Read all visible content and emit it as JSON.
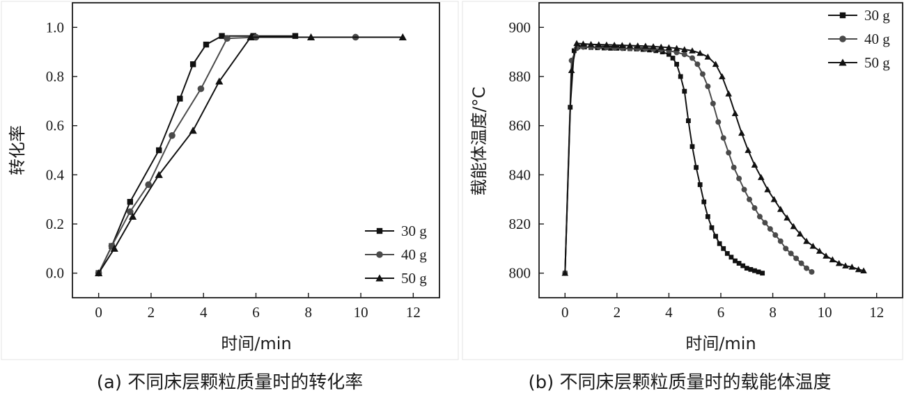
{
  "chart_data": [
    {
      "type": "line",
      "xlabel": "时间/min",
      "ylabel": "转化率",
      "caption": "(a) 不同床层颗粒质量时的转化率",
      "xlim": [
        -1,
        13
      ],
      "ylim": [
        -0.1,
        1.1
      ],
      "xticks": [
        0,
        2,
        4,
        6,
        8,
        10,
        12
      ],
      "yticks": [
        0.0,
        0.2,
        0.4,
        0.6,
        0.8,
        1.0
      ],
      "ytick_decimals": 1,
      "legend_position": "bottom-right",
      "series": [
        {
          "name": "30 g",
          "marker": "square",
          "color": "#111111",
          "x": [
            0,
            0.5,
            1.2,
            2.3,
            3.1,
            3.6,
            4.1,
            4.7,
            5.9,
            7.5
          ],
          "y": [
            0.0,
            0.11,
            0.29,
            0.5,
            0.71,
            0.85,
            0.93,
            0.965,
            0.965,
            0.965
          ]
        },
        {
          "name": "40 g",
          "marker": "circle",
          "color": "#4a4a4a",
          "x": [
            0,
            0.5,
            1.2,
            1.9,
            2.8,
            3.9,
            4.9,
            6.0,
            9.8
          ],
          "y": [
            0.0,
            0.11,
            0.25,
            0.36,
            0.56,
            0.75,
            0.955,
            0.96,
            0.96
          ]
        },
        {
          "name": "50 g",
          "marker": "triangle",
          "color": "#111111",
          "x": [
            0,
            0.6,
            1.3,
            2.3,
            3.6,
            4.6,
            5.8,
            8.1,
            11.6
          ],
          "y": [
            0.0,
            0.1,
            0.23,
            0.4,
            0.58,
            0.78,
            0.96,
            0.96,
            0.96
          ]
        }
      ]
    },
    {
      "type": "line",
      "xlabel": "时间/min",
      "ylabel": "载能体温度/°C",
      "caption": "(b) 不同床层颗粒质量时的载能体温度",
      "xlim": [
        -1,
        13
      ],
      "ylim": [
        790,
        910
      ],
      "xticks": [
        0,
        2,
        4,
        6,
        8,
        10,
        12
      ],
      "yticks": [
        800,
        820,
        840,
        860,
        880,
        900
      ],
      "ytick_decimals": 0,
      "legend_position": "top-right",
      "series": [
        {
          "name": "30 g",
          "marker": "square",
          "color": "#111111",
          "x": [
            0,
            0.2,
            0.35,
            0.5,
            0.75,
            1.0,
            1.25,
            1.5,
            1.75,
            2.0,
            2.25,
            2.5,
            2.75,
            3.0,
            3.25,
            3.5,
            3.75,
            4.0,
            4.15,
            4.3,
            4.45,
            4.6,
            4.75,
            4.9,
            5.05,
            5.2,
            5.35,
            5.5,
            5.65,
            5.8,
            5.95,
            6.1,
            6.25,
            6.4,
            6.55,
            6.7,
            6.85,
            7.0,
            7.15,
            7.3,
            7.45,
            7.6
          ],
          "y": [
            800,
            867.5,
            890.5,
            892,
            892,
            891.8,
            891.7,
            891.6,
            891.5,
            891.5,
            891.4,
            891.3,
            891.2,
            891,
            890.8,
            890.5,
            890,
            889,
            887.5,
            885,
            880,
            874,
            862,
            851.5,
            843,
            836,
            829,
            823,
            818.5,
            815,
            812,
            810,
            808,
            806.5,
            805,
            804,
            803,
            802,
            801.5,
            801,
            800.5,
            800
          ]
        },
        {
          "name": "40 g",
          "marker": "circle",
          "color": "#4a4a4a",
          "x": [
            0,
            0.25,
            0.45,
            0.7,
            1.0,
            1.3,
            1.6,
            1.9,
            2.2,
            2.5,
            2.8,
            3.1,
            3.4,
            3.7,
            4.0,
            4.3,
            4.6,
            4.9,
            5.1,
            5.3,
            5.5,
            5.7,
            5.9,
            6.1,
            6.3,
            6.5,
            6.7,
            6.9,
            7.1,
            7.3,
            7.5,
            7.7,
            7.9,
            8.1,
            8.3,
            8.5,
            8.7,
            8.9,
            9.1,
            9.3,
            9.5
          ],
          "y": [
            800,
            886.5,
            891.5,
            892,
            892,
            892,
            891.8,
            891.6,
            891.5,
            891.4,
            891.3,
            891.2,
            891.1,
            891,
            890.5,
            889.8,
            889,
            887.5,
            885,
            881,
            876,
            869,
            861.5,
            855,
            849,
            843,
            838.5,
            834,
            830,
            826.5,
            823,
            820.5,
            818,
            815.5,
            813,
            810,
            808,
            806,
            804,
            802,
            800.5
          ]
        },
        {
          "name": "50 g",
          "marker": "triangle",
          "color": "#111111",
          "x": [
            0,
            0.25,
            0.45,
            0.7,
            1.0,
            1.3,
            1.6,
            1.9,
            2.2,
            2.5,
            2.8,
            3.1,
            3.4,
            3.7,
            4.0,
            4.3,
            4.6,
            4.9,
            5.2,
            5.5,
            5.8,
            6.05,
            6.3,
            6.55,
            6.8,
            7.05,
            7.3,
            7.55,
            7.8,
            8.05,
            8.3,
            8.55,
            8.8,
            9.05,
            9.3,
            9.55,
            9.8,
            10.05,
            10.3,
            10.55,
            10.8,
            11.05,
            11.3,
            11.5
          ],
          "y": [
            800,
            882.5,
            893.5,
            893.3,
            893.1,
            893,
            892.9,
            892.8,
            892.7,
            892.6,
            892.5,
            892.4,
            892.2,
            892,
            891.8,
            891.5,
            891,
            890.5,
            889.5,
            888,
            885,
            880,
            873,
            865,
            857,
            850,
            844,
            839,
            834,
            830,
            826,
            822.5,
            819,
            816,
            813,
            811,
            809,
            807,
            805.5,
            804,
            803,
            802.5,
            801.5,
            801
          ]
        }
      ]
    }
  ]
}
